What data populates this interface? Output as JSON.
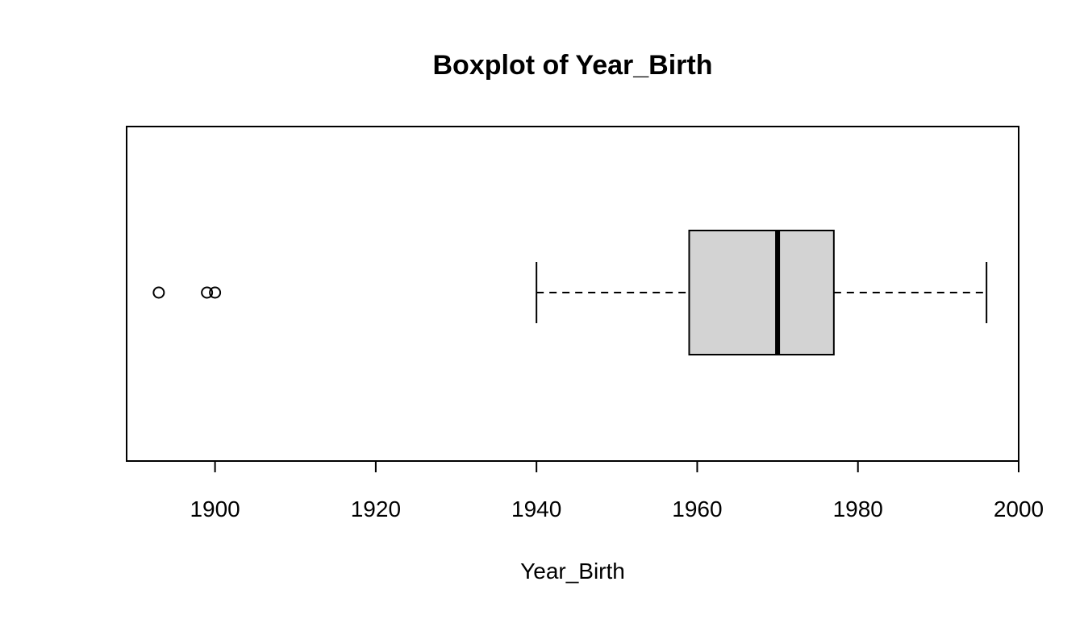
{
  "chart_data": {
    "type": "boxplot",
    "orientation": "horizontal",
    "title": "Boxplot of Year_Birth",
    "xlabel": "Year_Birth",
    "ylabel": "",
    "xlim": [
      1889,
      2000
    ],
    "x_ticks": [
      1900,
      1920,
      1940,
      1960,
      1980,
      2000
    ],
    "box": {
      "whisker_low": 1940,
      "q1": 1959,
      "median": 1970,
      "q3": 1977,
      "whisker_high": 1996
    },
    "outliers": [
      1893,
      1899,
      1900
    ],
    "colors": {
      "box_fill": "#d3d3d3",
      "stroke": "#000000"
    },
    "grid": false
  }
}
